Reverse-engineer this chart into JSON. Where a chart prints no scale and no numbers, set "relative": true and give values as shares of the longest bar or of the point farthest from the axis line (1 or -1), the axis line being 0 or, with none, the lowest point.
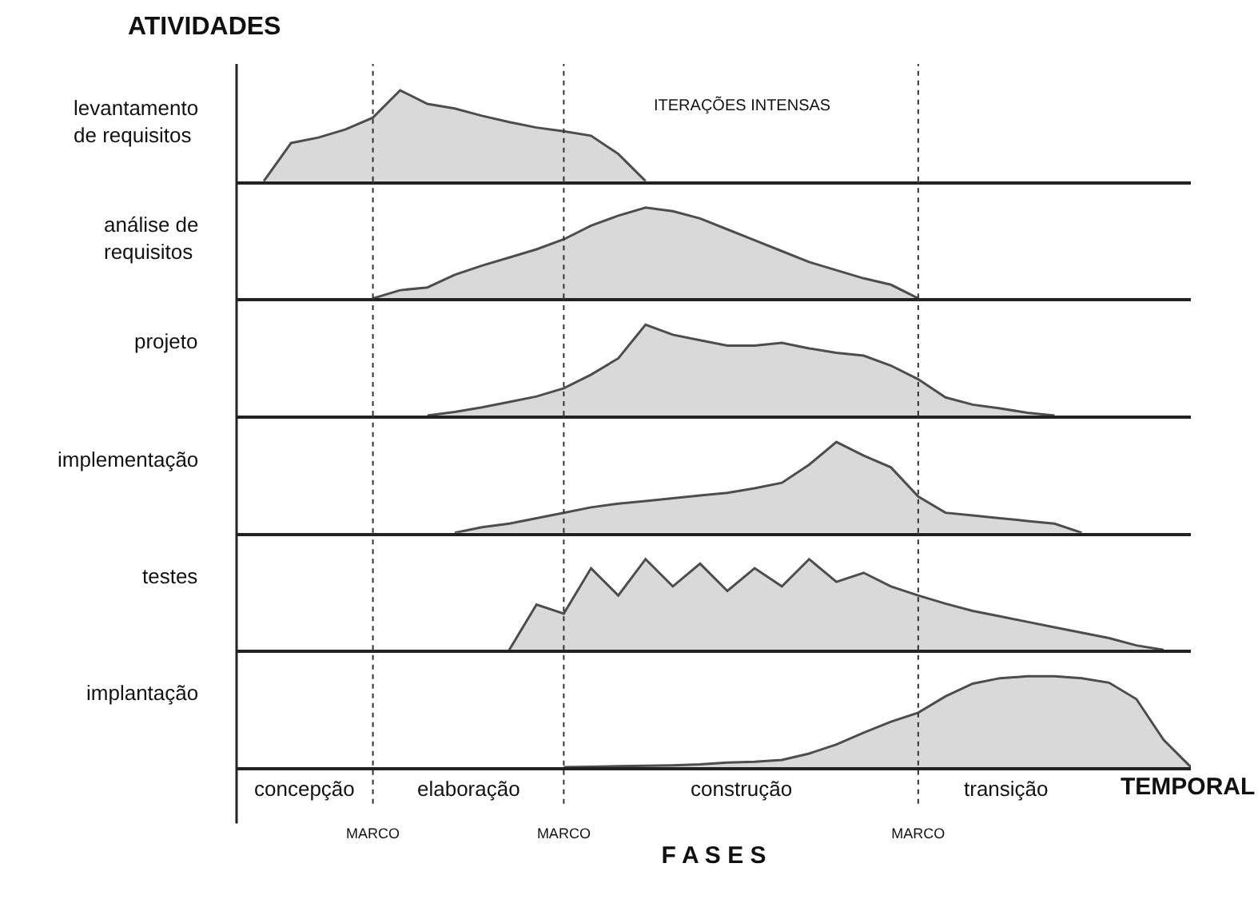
{
  "chart_data": [
    {
      "type": "area",
      "title": "ATIVIDADES",
      "relative": true,
      "tick_labels": false,
      "grid": "x",
      "annotations": [
        "ITERAÇÕES INTENSAS"
      ],
      "categories": [
        null,
        null,
        null,
        null,
        null,
        null,
        null,
        null,
        null,
        null,
        null,
        null,
        null,
        null,
        null,
        null,
        null,
        null,
        null,
        null,
        null,
        null,
        null,
        null,
        null,
        null,
        null,
        null,
        null,
        null,
        null,
        null,
        null,
        null,
        null,
        null
      ],
      "series": [
        {
          "name": "levantamento\nde requisitos",
          "color": "#d9d9d9",
          "values": [
            null,
            0,
            0.42,
            0.48,
            0.57,
            0.7,
            1,
            0.85,
            0.8,
            0.72,
            0.65,
            0.59,
            0.55,
            0.5,
            0.3,
            0,
            null,
            null,
            null,
            null,
            null,
            null,
            null,
            null,
            null,
            null,
            null,
            null,
            null,
            null,
            null,
            null,
            null,
            null,
            null,
            null
          ]
        }
      ]
    },
    {
      "type": "area",
      "relative": true,
      "tick_labels": false,
      "grid": "x",
      "categories": [
        null,
        null,
        null,
        null,
        null,
        null,
        null,
        null,
        null,
        null,
        null,
        null,
        null,
        null,
        null,
        null,
        null,
        null,
        null,
        null,
        null,
        null,
        null,
        null,
        null,
        null,
        null,
        null,
        null,
        null,
        null,
        null,
        null,
        null,
        null,
        null
      ],
      "series": [
        {
          "name": "análise de\nrequisitos",
          "color": "#d9d9d9",
          "values": [
            null,
            null,
            null,
            null,
            null,
            0,
            0.09,
            0.12,
            0.26,
            0.36,
            0.45,
            0.54,
            0.65,
            0.8,
            0.91,
            1,
            0.96,
            0.88,
            0.76,
            0.64,
            0.52,
            0.4,
            0.31,
            0.22,
            0.15,
            0,
            null,
            null,
            null,
            null,
            null,
            null,
            null,
            null,
            null,
            null
          ]
        }
      ]
    },
    {
      "type": "area",
      "relative": true,
      "tick_labels": false,
      "grid": "x",
      "categories": [
        null,
        null,
        null,
        null,
        null,
        null,
        null,
        null,
        null,
        null,
        null,
        null,
        null,
        null,
        null,
        null,
        null,
        null,
        null,
        null,
        null,
        null,
        null,
        null,
        null,
        null,
        null,
        null,
        null,
        null,
        null,
        null,
        null,
        null,
        null,
        null
      ],
      "series": [
        {
          "name": "projeto",
          "color": "#d9d9d9",
          "values": [
            null,
            null,
            null,
            null,
            null,
            null,
            null,
            0,
            0.04,
            0.09,
            0.15,
            0.21,
            0.3,
            0.45,
            0.63,
            1,
            0.89,
            0.83,
            0.77,
            0.77,
            0.8,
            0.74,
            0.69,
            0.66,
            0.55,
            0.4,
            0.2,
            0.12,
            0.08,
            0.03,
            0,
            null,
            null,
            null,
            null,
            null
          ]
        }
      ]
    },
    {
      "type": "area",
      "relative": true,
      "tick_labels": false,
      "grid": "x",
      "categories": [
        null,
        null,
        null,
        null,
        null,
        null,
        null,
        null,
        null,
        null,
        null,
        null,
        null,
        null,
        null,
        null,
        null,
        null,
        null,
        null,
        null,
        null,
        null,
        null,
        null,
        null,
        null,
        null,
        null,
        null,
        null,
        null,
        null,
        null,
        null,
        null
      ],
      "series": [
        {
          "name": "implementação",
          "color": "#d9d9d9",
          "values": [
            null,
            null,
            null,
            null,
            null,
            null,
            null,
            null,
            0,
            0.06,
            0.1,
            0.16,
            0.22,
            0.28,
            0.32,
            0.35,
            0.38,
            0.41,
            0.44,
            0.49,
            0.55,
            0.75,
            1,
            0.85,
            0.72,
            0.4,
            0.22,
            0.19,
            0.16,
            0.13,
            0.1,
            0,
            null,
            null,
            null,
            null
          ]
        }
      ]
    },
    {
      "type": "area",
      "relative": true,
      "tick_labels": false,
      "grid": "x",
      "categories": [
        null,
        null,
        null,
        null,
        null,
        null,
        null,
        null,
        null,
        null,
        null,
        null,
        null,
        null,
        null,
        null,
        null,
        null,
        null,
        null,
        null,
        null,
        null,
        null,
        null,
        null,
        null,
        null,
        null,
        null,
        null,
        null,
        null,
        null,
        null,
        null
      ],
      "series": [
        {
          "name": "testes",
          "color": "#d9d9d9",
          "values": [
            null,
            null,
            null,
            null,
            null,
            null,
            null,
            null,
            null,
            null,
            0,
            0.5,
            0.4,
            0.9,
            0.6,
            1,
            0.7,
            0.95,
            0.65,
            0.9,
            0.7,
            1,
            0.75,
            0.85,
            0.7,
            0.6,
            0.51,
            0.43,
            0.37,
            0.31,
            0.25,
            0.19,
            0.13,
            0.05,
            0,
            null
          ]
        }
      ]
    },
    {
      "type": "area",
      "relative": true,
      "tick_labels": "x",
      "grid": "x",
      "xlabel": "F A S E S",
      "annotations": [
        "concepção",
        "elaboração",
        "construção",
        "transição",
        "TEMPORAL"
      ],
      "categories": [
        null,
        null,
        null,
        null,
        null,
        "MARCO",
        null,
        null,
        null,
        null,
        null,
        null,
        "MARCO",
        null,
        null,
        null,
        null,
        null,
        null,
        null,
        null,
        null,
        null,
        null,
        null,
        "MARCO",
        null,
        null,
        null,
        null,
        null,
        null,
        null,
        null,
        null,
        null
      ],
      "series": [
        {
          "name": "implantação",
          "color": "#d9d9d9",
          "values": [
            null,
            null,
            null,
            null,
            null,
            null,
            null,
            null,
            null,
            null,
            null,
            null,
            0,
            0.005,
            0.01,
            0.015,
            0.02,
            0.03,
            0.05,
            0.06,
            0.08,
            0.15,
            0.25,
            0.38,
            0.5,
            0.6,
            0.78,
            0.92,
            0.98,
            1,
            1,
            0.98,
            0.93,
            0.75,
            0.3,
            0
          ]
        }
      ]
    }
  ]
}
